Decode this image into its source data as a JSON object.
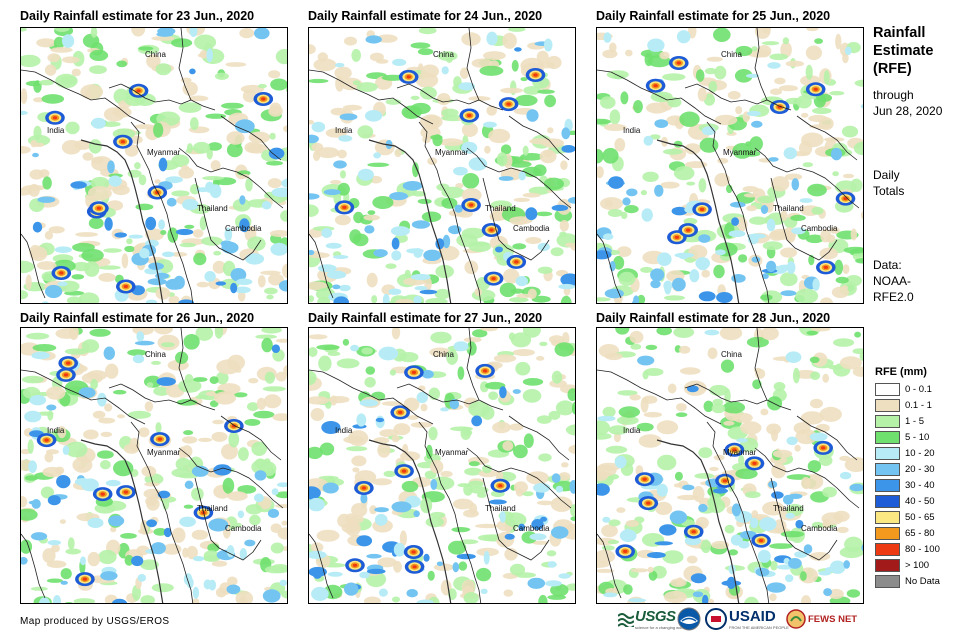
{
  "panels": [
    {
      "title": "Daily Rainfall estimate for 23 Jun., 2020",
      "day": 23
    },
    {
      "title": "Daily Rainfall estimate for 24 Jun., 2020",
      "day": 24
    },
    {
      "title": "Daily Rainfall estimate for 25 Jun., 2020",
      "day": 25
    },
    {
      "title": "Daily Rainfall estimate for 26 Jun., 2020",
      "day": 26
    },
    {
      "title": "Daily Rainfall estimate for 27 Jun., 2020",
      "day": 27
    },
    {
      "title": "Daily Rainfall estimate for 28 Jun., 2020",
      "day": 28
    }
  ],
  "places": {
    "china": "China",
    "india": "India",
    "myanmar": "Myanmar",
    "thailand": "Thailand",
    "cambodia": "Cambodia"
  },
  "sidebar": {
    "title_line1": "Rainfall",
    "title_line2": "Estimate",
    "title_line3": "(RFE)",
    "through": "through",
    "through_date": "Jun 28, 2020",
    "daily": "Daily",
    "totals": "Totals",
    "data_label": "Data:",
    "data_src1": "NOAA-",
    "data_src2": "RFE2.0"
  },
  "legend": {
    "title": "RFE (mm)",
    "items": [
      {
        "label": "0 - 0.1",
        "color": "#ffffff"
      },
      {
        "label": "0.1 - 1",
        "color": "#eedfc0"
      },
      {
        "label": "1 - 5",
        "color": "#b5f2a8"
      },
      {
        "label": "5 - 10",
        "color": "#6fe06e"
      },
      {
        "label": "10 - 20",
        "color": "#b7ecf6"
      },
      {
        "label": "20 - 30",
        "color": "#74c4f2"
      },
      {
        "label": "30 - 40",
        "color": "#3d95ea"
      },
      {
        "label": "40 - 50",
        "color": "#1e5bd6"
      },
      {
        "label": "50 - 65",
        "color": "#fce883"
      },
      {
        "label": "65 - 80",
        "color": "#f39a1e"
      },
      {
        "label": "80 - 100",
        "color": "#ee3a12"
      },
      {
        "label": "> 100",
        "color": "#a31a1a"
      },
      {
        "label": "No Data",
        "color": "#8c8c8c"
      }
    ]
  },
  "credit": "Map produced by USGS/EROS",
  "logos": {
    "usgs": "USGS",
    "usgs_tagline": "science for a changing world",
    "usaid": "USAID",
    "usaid_tagline": "FROM THE AMERICAN PEOPLE",
    "fews": "FEWS NET"
  }
}
